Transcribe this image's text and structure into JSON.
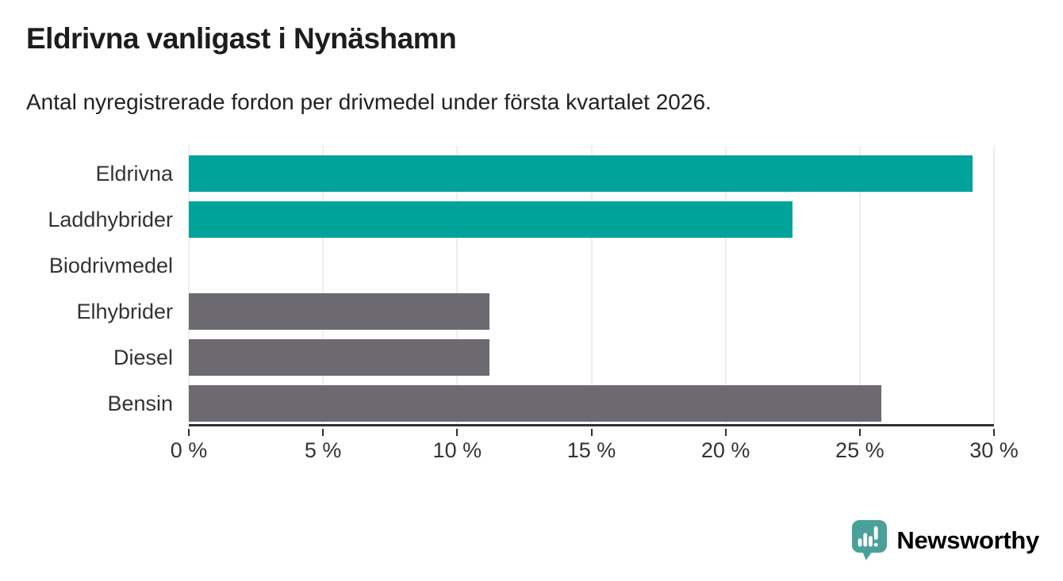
{
  "header": {
    "title": "Eldrivna vanligast i Nynäshamn",
    "subtitle": "Antal nyregistrerade fordon per drivmedel under första kvartalet 2026."
  },
  "chart_data": {
    "type": "bar",
    "orientation": "horizontal",
    "title": "Eldrivna vanligast i Nynäshamn",
    "subtitle": "Antal nyregistrerade fordon per drivmedel under första kvartalet 2026.",
    "categories": [
      "Eldrivna",
      "Laddhybrider",
      "Biodrivmedel",
      "Elhybrider",
      "Diesel",
      "Bensin"
    ],
    "values": [
      29.2,
      22.5,
      0,
      11.2,
      11.2,
      25.8
    ],
    "unit": "%",
    "xlim": [
      0,
      30
    ],
    "tick_values": [
      0,
      5,
      10,
      15,
      20,
      25,
      30
    ],
    "tick_labels": [
      "0 %",
      "5 %",
      "10 %",
      "15 %",
      "20 %",
      "25 %",
      "30 %"
    ],
    "bar_colors": [
      "#00a39a",
      "#00a39a",
      "#6c6970",
      "#6c6970",
      "#6c6970",
      "#6c6970"
    ],
    "grid": true,
    "legend": "none",
    "colors": {
      "highlight": "#00a39a",
      "default": "#6c6970",
      "gridline": "#dddddd",
      "axis": "#2f2f2f",
      "label": "#333333"
    }
  },
  "footer": {
    "brand": "Newsworthy",
    "brand_color": "#4aa09a"
  }
}
